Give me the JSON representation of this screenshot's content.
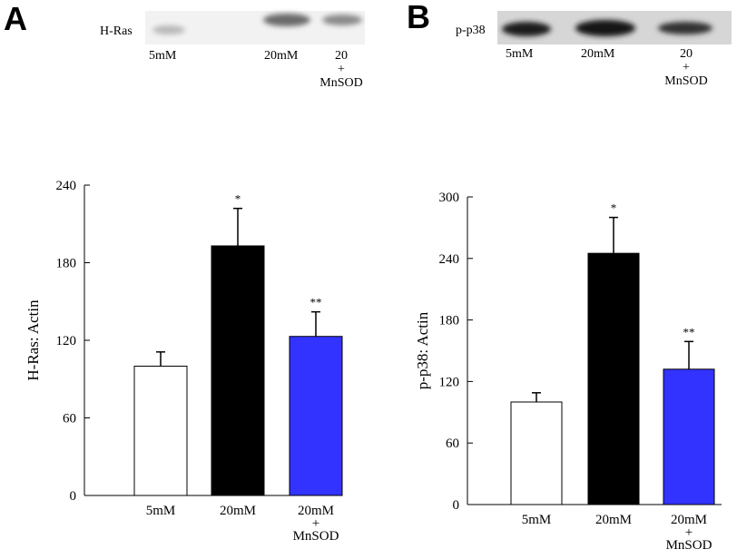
{
  "panels": {
    "a": {
      "letter": "A"
    },
    "b": {
      "letter": "B"
    }
  },
  "blots": {
    "a": {
      "label": "H-Ras",
      "lanes": [
        "5mM",
        "20mM",
        "20",
        "+",
        "MnSOD"
      ]
    },
    "b": {
      "label": "p-p38",
      "lanes": [
        "5mM",
        "20mM",
        "20",
        "+",
        "MnSOD"
      ]
    }
  },
  "chart_data": [
    {
      "type": "bar",
      "panel": "A",
      "title": "",
      "xlabel": "",
      "ylabel": "H-Ras: Actin",
      "categories": [
        "5mM",
        "20mM",
        "20mM + MnSOD"
      ],
      "category_lines": [
        [
          "5mM"
        ],
        [
          "20mM"
        ],
        [
          "20mM",
          "+",
          "MnSOD"
        ]
      ],
      "values": [
        100,
        193,
        123
      ],
      "errors": [
        11,
        29,
        19
      ],
      "significance": [
        "",
        "*",
        "**"
      ],
      "colors": [
        "#ffffff",
        "#000000",
        "#3333ff"
      ],
      "ylim": [
        0,
        240
      ],
      "yticks": [
        "0",
        "60",
        "120",
        "180",
        "240"
      ],
      "grid": false
    },
    {
      "type": "bar",
      "panel": "B",
      "title": "",
      "xlabel": "",
      "ylabel": "p-p38: Actin",
      "categories": [
        "5mM",
        "20mM",
        "20mM + MnSOD"
      ],
      "category_lines": [
        [
          "5mM"
        ],
        [
          "20mM"
        ],
        [
          "20mM",
          "+",
          "MnSOD"
        ]
      ],
      "values": [
        100,
        245,
        132
      ],
      "errors": [
        9,
        35,
        27
      ],
      "significance": [
        "",
        "*",
        "**"
      ],
      "colors": [
        "#ffffff",
        "#000000",
        "#3333ff"
      ],
      "ylim": [
        0,
        300
      ],
      "yticks": [
        "0",
        "60",
        "120",
        "180",
        "240",
        "300"
      ],
      "grid": false
    }
  ]
}
